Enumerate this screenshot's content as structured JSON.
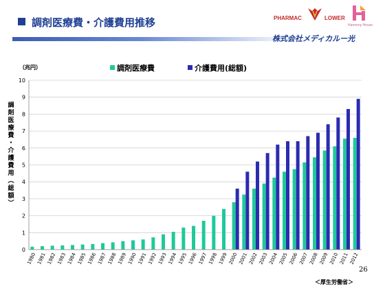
{
  "slide": {
    "title": "調剤医療費・介護費用推移",
    "page_number": "26",
    "source": "＜厚生労働省＞"
  },
  "logos": {
    "pharmac": "PHARMAC",
    "lower": "LOWER",
    "harmony": "Harmony House",
    "company": "株式会社メディカルー光"
  },
  "colors": {
    "title": "#1f3f93",
    "series_dispensing": "#1fc99a",
    "series_care": "#2b2cb0",
    "grid": "#cfcfcf"
  },
  "chart_data": {
    "type": "bar",
    "title": "",
    "unit_label": "（兆円）",
    "ylabel": "調剤医療費・介護費用（総額）",
    "ylim": [
      0,
      10
    ],
    "yticks": [
      0,
      1,
      2,
      3,
      4,
      5,
      6,
      7,
      8,
      9,
      10
    ],
    "grid": true,
    "legend_position": "top",
    "categories": [
      "1980",
      "1981",
      "1982",
      "1983",
      "1984",
      "1985",
      "1986",
      "1987",
      "1988",
      "1989",
      "1990",
      "1991",
      "1992",
      "1993",
      "1994",
      "1995",
      "1996",
      "1997",
      "1998",
      "1999",
      "2000",
      "2001",
      "2002",
      "2003",
      "2004",
      "2005",
      "2006",
      "2007",
      "2008",
      "2009",
      "2010",
      "2011",
      "2012"
    ],
    "series": [
      {
        "name": "調剤医療費",
        "values": [
          0.17,
          0.2,
          0.23,
          0.25,
          0.27,
          0.3,
          0.33,
          0.38,
          0.43,
          0.5,
          0.55,
          0.6,
          0.72,
          0.9,
          1.05,
          1.3,
          1.4,
          1.7,
          2.0,
          2.4,
          2.8,
          3.25,
          3.6,
          3.9,
          4.25,
          4.6,
          4.75,
          5.15,
          5.45,
          5.85,
          6.1,
          6.55,
          6.6
        ]
      },
      {
        "name": "介護費用(総額)",
        "values": [
          null,
          null,
          null,
          null,
          null,
          null,
          null,
          null,
          null,
          null,
          null,
          null,
          null,
          null,
          null,
          null,
          null,
          null,
          null,
          null,
          3.6,
          4.6,
          5.2,
          5.7,
          6.2,
          6.4,
          6.4,
          6.7,
          6.9,
          7.4,
          7.8,
          8.3,
          8.9
        ]
      }
    ]
  }
}
